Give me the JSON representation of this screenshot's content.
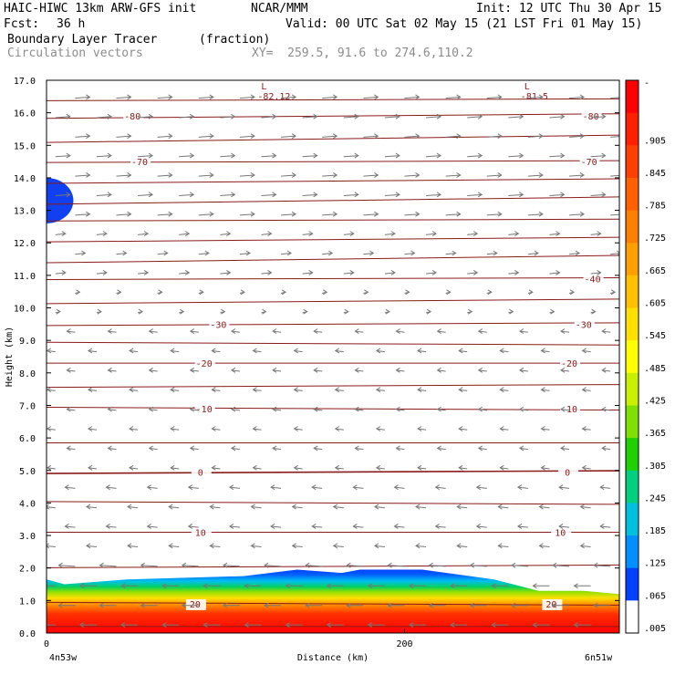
{
  "header": {
    "title_left": "HAIC-HIWC 13km ARW-GFS init",
    "org": "NCAR/MMM",
    "init": "Init: 12 UTC Thu 30 Apr 15",
    "fcst_label": "Fcst:",
    "fcst_value": "36 h",
    "valid": "Valid: 00 UTC Sat 02 May 15 (21 LST Fri 01 May 15)",
    "field_name": "Boundary Layer Tracer",
    "field_units": "(fraction)",
    "vector_name": "Circulation vectors",
    "cross_section": "XY=  259.5, 91.6 to 274.6,110.2"
  },
  "chart_data": {
    "type": "heatmap",
    "ylabel": "Height (km)",
    "xlabel": "Distance (km)",
    "x_ticks": [
      "0",
      "200"
    ],
    "x_end_labels": {
      "left": "4n53w",
      "right": "6n51w"
    },
    "xlim": [
      0,
      320
    ],
    "ylim": [
      0,
      17
    ],
    "y_ticks": [
      "0.0",
      "1.0",
      "2.0",
      "3.0",
      "4.0",
      "5.0",
      "6.0",
      "7.0",
      "8.0",
      "9.0",
      "10.0",
      "11.0",
      "12.0",
      "13.0",
      "14.0",
      "15.0",
      "16.0",
      "17.0"
    ],
    "colorbar": {
      "labels": [
        "-",
        ".905",
        ".845",
        ".785",
        ".725",
        ".665",
        ".605",
        ".545",
        ".485",
        ".425",
        ".365",
        ".305",
        ".245",
        ".185",
        ".125",
        ".065",
        ".005"
      ],
      "colors": [
        "#ff0000",
        "#ff2000",
        "#ff4000",
        "#ff6000",
        "#ff8000",
        "#ffa000",
        "#ffc000",
        "#ffe000",
        "#ffff00",
        "#c8f000",
        "#80e000",
        "#20d000",
        "#00d080",
        "#00c0e0",
        "#0090ff",
        "#0040ff",
        "#ffffff"
      ]
    },
    "temperature_contours": [
      {
        "label": "-80",
        "y": 15.9,
        "label_x": [
          48,
          304
        ]
      },
      {
        "label": "-70",
        "y": 14.5,
        "label_x": [
          52,
          303
        ]
      },
      {
        "label": "-40",
        "y": 10.9,
        "label_x": [
          305
        ]
      },
      {
        "label": "-30",
        "y": 9.5,
        "label_x": [
          96,
          300
        ]
      },
      {
        "label": "-20",
        "y": 8.3,
        "label_x": [
          88,
          292
        ]
      },
      {
        "label": "-10",
        "y": 6.9,
        "label_x": [
          88,
          292
        ]
      },
      {
        "label": "0",
        "y": 4.95,
        "label_x": [
          86,
          291
        ]
      },
      {
        "label": "10",
        "y": 3.1,
        "label_x": [
          86,
          287
        ]
      },
      {
        "label": "20",
        "y": 0.9,
        "label_x": [
          83,
          282
        ]
      }
    ],
    "low_markers": [
      {
        "symbol": "L",
        "value": "-82.12",
        "x": 125
      },
      {
        "symbol": "L",
        "value": "-81.5",
        "x": 272
      }
    ],
    "pbl_top_km": [
      [
        0,
        1.65
      ],
      [
        10,
        1.5
      ],
      [
        45,
        1.65
      ],
      [
        110,
        1.75
      ],
      [
        140,
        1.95
      ],
      [
        165,
        1.85
      ],
      [
        175,
        1.95
      ],
      [
        210,
        1.95
      ],
      [
        250,
        1.65
      ],
      [
        275,
        1.3
      ],
      [
        300,
        1.3
      ],
      [
        320,
        1.2
      ]
    ],
    "high_tracer_blob": {
      "x_range": [
        0,
        15
      ],
      "y_range": [
        12.6,
        14.0
      ]
    }
  }
}
